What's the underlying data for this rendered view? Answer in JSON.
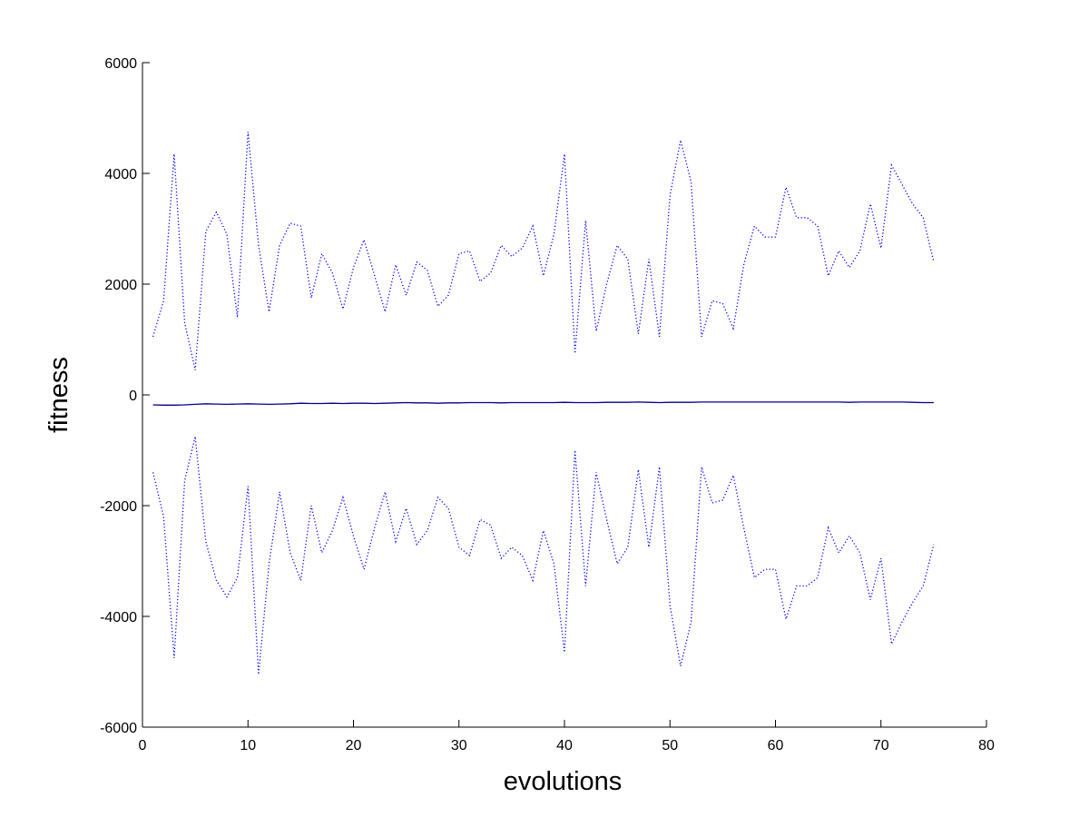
{
  "chart_data": {
    "type": "line",
    "title": "",
    "xlabel": "evolutions",
    "ylabel": "fitness",
    "xlim": [
      0,
      80
    ],
    "ylim": [
      -6000,
      6000
    ],
    "xticks": [
      0,
      10,
      20,
      30,
      40,
      50,
      60,
      70,
      80
    ],
    "yticks": [
      -6000,
      -4000,
      -2000,
      0,
      2000,
      4000,
      6000
    ],
    "grid": false,
    "legend": "none",
    "x": [
      1,
      2,
      3,
      4,
      5,
      6,
      7,
      8,
      9,
      10,
      11,
      12,
      13,
      14,
      15,
      16,
      17,
      18,
      19,
      20,
      21,
      22,
      23,
      24,
      25,
      26,
      27,
      28,
      29,
      30,
      31,
      32,
      33,
      34,
      35,
      36,
      37,
      38,
      39,
      40,
      41,
      42,
      43,
      44,
      45,
      46,
      47,
      48,
      49,
      50,
      51,
      52,
      53,
      54,
      55,
      56,
      57,
      58,
      59,
      60,
      61,
      62,
      63,
      64,
      65,
      66,
      67,
      68,
      69,
      70,
      71,
      72,
      73,
      74,
      75
    ],
    "series": [
      {
        "style": "dotted",
        "color": "#0000ff",
        "values": [
          1050,
          1700,
          4350,
          1300,
          450,
          2950,
          3300,
          2900,
          1400,
          4750,
          2700,
          1500,
          2700,
          3100,
          3050,
          1750,
          2550,
          2200,
          1550,
          2300,
          2800,
          2150,
          1500,
          2350,
          1800,
          2400,
          2250,
          1600,
          1800,
          2550,
          2600,
          2050,
          2200,
          2700,
          2500,
          2650,
          3050,
          2150,
          2900,
          4350,
          750,
          3150,
          1150,
          2000,
          2700,
          2450,
          1100,
          2450,
          1050,
          3600,
          4600,
          3850,
          1050,
          1700,
          1650,
          1200,
          2350,
          3050,
          2850,
          2850,
          3750,
          3200,
          3200,
          3050,
          2150,
          2600,
          2300,
          2600,
          3450,
          2650,
          4150,
          3800,
          3450,
          3200,
          2400
        ]
      },
      {
        "style": "solid",
        "color": "#00008b",
        "values": [
          -180,
          -185,
          -185,
          -180,
          -170,
          -160,
          -165,
          -170,
          -165,
          -160,
          -165,
          -170,
          -165,
          -160,
          -150,
          -155,
          -155,
          -150,
          -155,
          -150,
          -150,
          -155,
          -150,
          -145,
          -140,
          -145,
          -145,
          -150,
          -145,
          -145,
          -140,
          -140,
          -140,
          -145,
          -140,
          -140,
          -140,
          -140,
          -140,
          -135,
          -140,
          -140,
          -140,
          -135,
          -135,
          -135,
          -130,
          -135,
          -140,
          -135,
          -135,
          -135,
          -130,
          -130,
          -130,
          -130,
          -130,
          -130,
          -130,
          -130,
          -130,
          -130,
          -130,
          -130,
          -130,
          -130,
          -135,
          -130,
          -130,
          -130,
          -130,
          -130,
          -135,
          -140,
          -140
        ]
      },
      {
        "style": "dotted",
        "color": "#0000ff",
        "values": [
          -1400,
          -2200,
          -4750,
          -1550,
          -750,
          -2650,
          -3350,
          -3650,
          -3300,
          -1650,
          -5050,
          -3050,
          -1750,
          -2850,
          -3350,
          -2000,
          -2850,
          -2450,
          -1850,
          -2550,
          -3150,
          -2400,
          -1750,
          -2650,
          -2050,
          -2700,
          -2450,
          -1850,
          -2050,
          -2750,
          -2900,
          -2250,
          -2350,
          -2950,
          -2750,
          -2900,
          -3350,
          -2450,
          -3050,
          -4650,
          -1000,
          -3450,
          -1400,
          -2250,
          -3050,
          -2750,
          -1350,
          -2750,
          -1300,
          -3800,
          -4900,
          -4100,
          -1300,
          -1950,
          -1900,
          -1450,
          -2400,
          -3300,
          -3150,
          -3150,
          -4050,
          -3450,
          -3450,
          -3300,
          -2400,
          -2850,
          -2550,
          -2850,
          -3700,
          -2950,
          -4500,
          -4100,
          -3750,
          -3450,
          -2700
        ]
      }
    ]
  }
}
